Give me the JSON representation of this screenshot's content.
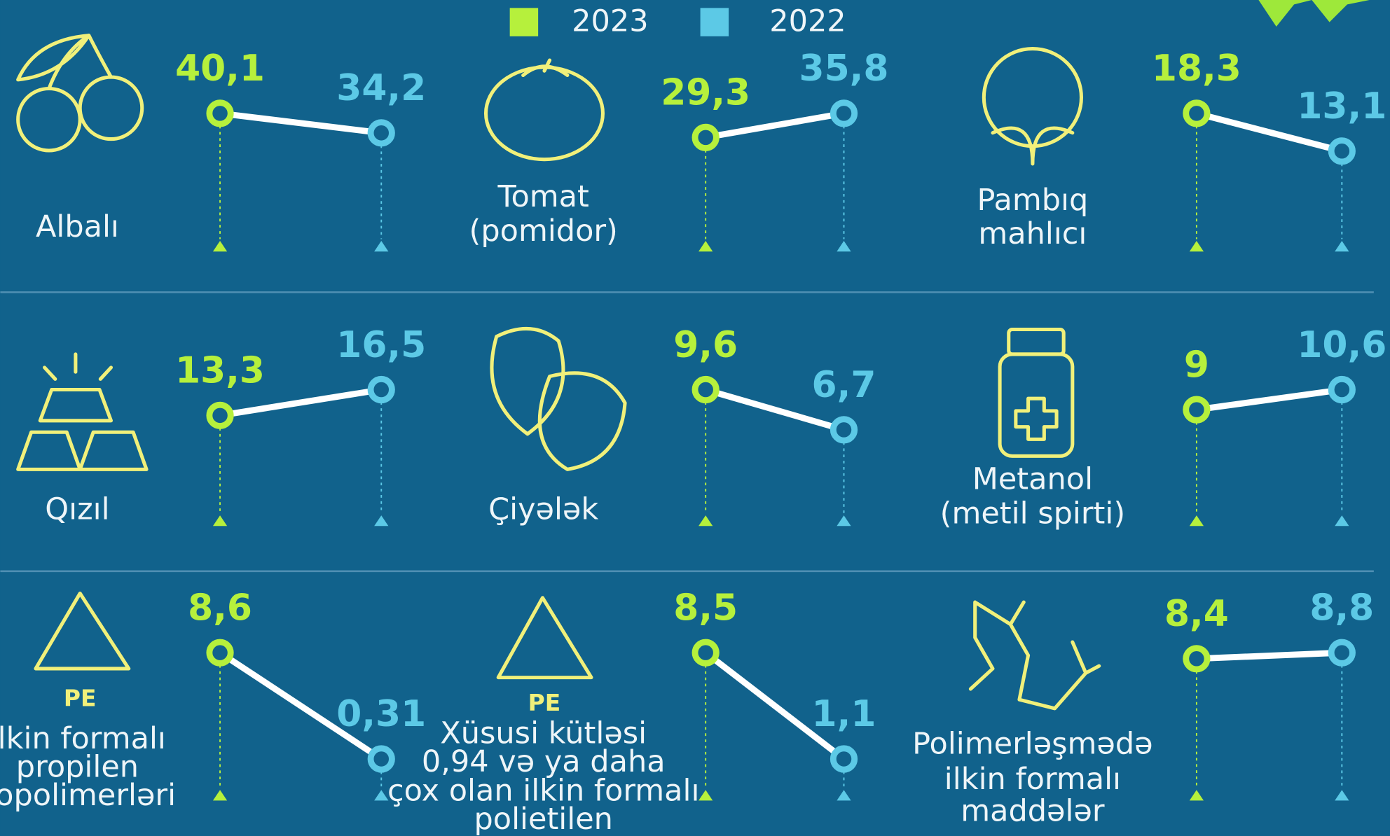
{
  "legend": [
    {
      "name": "2023",
      "color": "#b6f03c"
    },
    {
      "name": "2022",
      "color": "#5cc9e6"
    }
  ],
  "chart_data": [
    {
      "type": "slope",
      "title": [
        "Albalı"
      ],
      "values": [
        40.1,
        34.2
      ],
      "value_labels": [
        "40,1",
        "34,2"
      ]
    },
    {
      "type": "slope",
      "title": [
        "Tomat",
        "(pomidor)"
      ],
      "values": [
        29.3,
        35.8
      ],
      "value_labels": [
        "29,3",
        "35,8"
      ]
    },
    {
      "type": "slope",
      "title": [
        "Pambıq",
        "mahlıcı"
      ],
      "values": [
        18.3,
        13.1
      ],
      "value_labels": [
        "18,3",
        "13,1"
      ]
    },
    {
      "type": "slope",
      "title": [
        "Qızıl"
      ],
      "values": [
        13.3,
        16.5
      ],
      "value_labels": [
        "13,3",
        "16,5"
      ]
    },
    {
      "type": "slope",
      "title": [
        "Çiyələk"
      ],
      "values": [
        9.6,
        6.7
      ],
      "value_labels": [
        "9,6",
        "6,7"
      ]
    },
    {
      "type": "slope",
      "title": [
        "Metanol",
        "(metil spirti)"
      ],
      "values": [
        9,
        10.6
      ],
      "value_labels": [
        "9",
        "10,6"
      ]
    },
    {
      "type": "slope",
      "title": [
        "İlkin formalı",
        "propilen",
        "kopolimerləri"
      ],
      "icon_text": "PE",
      "values": [
        8.6,
        0.31
      ],
      "value_labels": [
        "8,6",
        "0,31"
      ]
    },
    {
      "type": "slope",
      "title": [
        "Xüsusi kütləsi",
        "0,94 və ya daha",
        "çox olan ilkin formalı",
        "polietilen"
      ],
      "icon_text": "PE",
      "values": [
        8.5,
        1.1
      ],
      "value_labels": [
        "8,5",
        "1,1"
      ]
    },
    {
      "type": "slope",
      "title": [
        "Polimerləşmədə",
        "ilkin formalı",
        "maddələr"
      ],
      "values": [
        8.4,
        8.8
      ],
      "value_labels": [
        "8,4",
        "8,8"
      ]
    }
  ]
}
